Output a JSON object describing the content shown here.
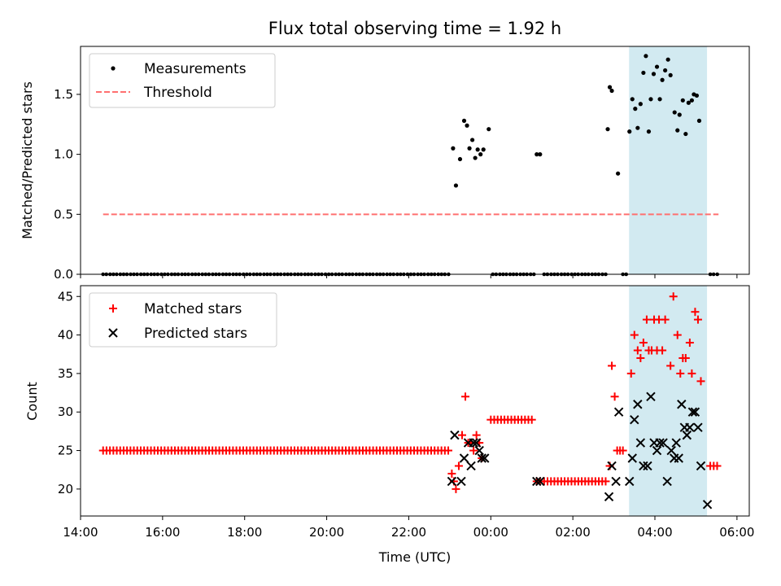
{
  "chart_data": [
    {
      "type": "scatter",
      "title": "Flux total observing time = 1.92 h",
      "xlabel": "",
      "ylabel": "Matched/Predicted stars",
      "xlim": [
        14.0,
        30.3
      ],
      "ylim": [
        0.0,
        1.9
      ],
      "yticks": [
        0.0,
        0.5,
        1.0,
        1.5
      ],
      "ytick_labels": [
        "0.0",
        "0.5",
        "1.0",
        "1.5"
      ],
      "shaded_region": {
        "x_start": 27.37,
        "x_end": 29.27,
        "color": "#add8e6"
      },
      "legend": {
        "placement": "top-left",
        "entries": [
          "Measurements",
          "Threshold"
        ]
      },
      "series": [
        {
          "name": "Measurements",
          "kind": "points",
          "color": "#000000",
          "zero_x": [
            14.55,
            14.63,
            14.72,
            14.8,
            14.88,
            14.97,
            15.05,
            15.13,
            15.22,
            15.3,
            15.38,
            15.47,
            15.55,
            15.63,
            15.72,
            15.8,
            15.88,
            15.97,
            16.05,
            16.13,
            16.22,
            16.3,
            16.38,
            16.47,
            16.55,
            16.63,
            16.72,
            16.8,
            16.88,
            16.97,
            17.05,
            17.13,
            17.22,
            17.3,
            17.38,
            17.47,
            17.55,
            17.63,
            17.72,
            17.8,
            17.88,
            17.97,
            18.05,
            18.13,
            18.22,
            18.3,
            18.38,
            18.47,
            18.55,
            18.63,
            18.72,
            18.8,
            18.88,
            18.97,
            19.05,
            19.13,
            19.22,
            19.3,
            19.38,
            19.47,
            19.55,
            19.63,
            19.72,
            19.8,
            19.88,
            19.97,
            20.05,
            20.13,
            20.22,
            20.3,
            20.38,
            20.47,
            20.55,
            20.63,
            20.72,
            20.8,
            20.88,
            20.97,
            21.05,
            21.13,
            21.22,
            21.3,
            21.38,
            21.47,
            21.55,
            21.63,
            21.72,
            21.8,
            21.88,
            21.97,
            22.05,
            22.13,
            22.22,
            22.3,
            22.38,
            22.47,
            22.55,
            22.63,
            22.72,
            22.8,
            22.88,
            22.97,
            24.05,
            24.13,
            24.22,
            24.3,
            24.38,
            24.47,
            24.55,
            24.63,
            24.72,
            24.8,
            24.88,
            24.97,
            25.05,
            25.3,
            25.38,
            25.47,
            25.55,
            25.63,
            25.72,
            25.8,
            25.88,
            25.97,
            26.05,
            26.13,
            26.22,
            26.3,
            26.38,
            26.47,
            26.55,
            26.63,
            26.72,
            26.8,
            27.22,
            27.3,
            29.35,
            29.43,
            29.52
          ],
          "points": [
            [
              23.08,
              1.05
            ],
            [
              23.15,
              0.74
            ],
            [
              23.25,
              0.96
            ],
            [
              23.35,
              1.28
            ],
            [
              23.42,
              1.24
            ],
            [
              23.48,
              1.05
            ],
            [
              23.55,
              1.12
            ],
            [
              23.62,
              0.97
            ],
            [
              23.68,
              1.04
            ],
            [
              23.75,
              1.0
            ],
            [
              23.82,
              1.04
            ],
            [
              23.95,
              1.21
            ],
            [
              25.12,
              1.0
            ],
            [
              25.2,
              1.0
            ],
            [
              26.85,
              1.21
            ],
            [
              26.9,
              1.56
            ],
            [
              26.95,
              1.53
            ],
            [
              27.1,
              0.84
            ],
            [
              27.38,
              1.19
            ],
            [
              27.45,
              1.46
            ],
            [
              27.52,
              1.38
            ],
            [
              27.58,
              1.22
            ],
            [
              27.65,
              1.42
            ],
            [
              27.72,
              1.68
            ],
            [
              27.78,
              1.82
            ],
            [
              27.85,
              1.19
            ],
            [
              27.9,
              1.46
            ],
            [
              27.97,
              1.67
            ],
            [
              28.05,
              1.73
            ],
            [
              28.12,
              1.46
            ],
            [
              28.18,
              1.62
            ],
            [
              28.25,
              1.7
            ],
            [
              28.32,
              1.79
            ],
            [
              28.38,
              1.66
            ],
            [
              28.48,
              1.35
            ],
            [
              28.55,
              1.2
            ],
            [
              28.6,
              1.33
            ],
            [
              28.68,
              1.45
            ],
            [
              28.75,
              1.17
            ],
            [
              28.82,
              1.43
            ],
            [
              28.9,
              1.45
            ],
            [
              28.95,
              1.5
            ],
            [
              29.02,
              1.49
            ],
            [
              29.08,
              1.28
            ]
          ]
        },
        {
          "name": "Threshold",
          "kind": "dashed-line",
          "color": "#ff7070",
          "x": [
            14.55,
            29.55
          ],
          "y": [
            0.5,
            0.5
          ]
        }
      ]
    },
    {
      "type": "scatter",
      "xlabel": "Time (UTC)",
      "ylabel": "Count",
      "xlim": [
        14.0,
        30.3
      ],
      "ylim": [
        16.5,
        46.4
      ],
      "yticks": [
        20,
        25,
        30,
        35,
        40,
        45
      ],
      "ytick_labels": [
        "20",
        "25",
        "30",
        "35",
        "40",
        "45"
      ],
      "xticks": [
        14,
        16,
        18,
        20,
        22,
        24,
        26,
        28,
        30
      ],
      "xtick_labels": [
        "14:00",
        "16:00",
        "18:00",
        "20:00",
        "22:00",
        "00:00",
        "02:00",
        "04:00",
        "06:00"
      ],
      "shaded_region": {
        "x_start": 27.37,
        "x_end": 29.27,
        "color": "#add8e6"
      },
      "legend": {
        "placement": "top-left",
        "entries": [
          "Matched stars",
          "Predicted stars"
        ]
      },
      "series": [
        {
          "name": "Matched stars",
          "marker": "plus",
          "color": "#ff0000",
          "flat_runs": [
            {
              "x_start": 14.55,
              "x_end": 22.97,
              "step": 0.0833,
              "y": 25
            },
            {
              "x_start": 24.0,
              "x_end": 25.05,
              "step": 0.0833,
              "y": 29
            },
            {
              "x_start": 25.3,
              "x_end": 26.8,
              "step": 0.0833,
              "y": 21
            },
            {
              "x_start": 27.22,
              "x_end": 27.3,
              "step": 0.0833,
              "y": 25
            },
            {
              "x_start": 29.35,
              "x_end": 29.52,
              "step": 0.0833,
              "y": 23
            }
          ],
          "points": [
            [
              23.05,
              22
            ],
            [
              23.1,
              21
            ],
            [
              23.15,
              20
            ],
            [
              23.22,
              23
            ],
            [
              23.3,
              27
            ],
            [
              23.38,
              32
            ],
            [
              23.45,
              26
            ],
            [
              23.52,
              26
            ],
            [
              23.58,
              25
            ],
            [
              23.65,
              27
            ],
            [
              23.72,
              26
            ],
            [
              23.78,
              24
            ],
            [
              25.12,
              21
            ],
            [
              25.2,
              21
            ],
            [
              26.9,
              23
            ],
            [
              26.95,
              36
            ],
            [
              27.02,
              32
            ],
            [
              27.08,
              25
            ],
            [
              27.15,
              25
            ],
            [
              27.42,
              35
            ],
            [
              27.5,
              40
            ],
            [
              27.58,
              38
            ],
            [
              27.65,
              37
            ],
            [
              27.72,
              39
            ],
            [
              27.8,
              42
            ],
            [
              27.85,
              38
            ],
            [
              27.92,
              38
            ],
            [
              27.98,
              42
            ],
            [
              28.05,
              38
            ],
            [
              28.1,
              42
            ],
            [
              28.18,
              38
            ],
            [
              28.25,
              42
            ],
            [
              28.38,
              36
            ],
            [
              28.45,
              45
            ],
            [
              28.55,
              40
            ],
            [
              28.62,
              35
            ],
            [
              28.68,
              37
            ],
            [
              28.75,
              37
            ],
            [
              28.85,
              39
            ],
            [
              28.9,
              35
            ],
            [
              28.98,
              43
            ],
            [
              29.05,
              42
            ],
            [
              29.12,
              34
            ]
          ]
        },
        {
          "name": "Predicted stars",
          "marker": "x",
          "color": "#000000",
          "points": [
            [
              23.05,
              21
            ],
            [
              23.12,
              27
            ],
            [
              23.28,
              21
            ],
            [
              23.35,
              24
            ],
            [
              23.45,
              26
            ],
            [
              23.52,
              23
            ],
            [
              23.58,
              26
            ],
            [
              23.65,
              26
            ],
            [
              23.72,
              25
            ],
            [
              23.78,
              24
            ],
            [
              23.85,
              24
            ],
            [
              25.12,
              21
            ],
            [
              25.2,
              21
            ],
            [
              26.88,
              19
            ],
            [
              26.95,
              23
            ],
            [
              27.05,
              21
            ],
            [
              27.12,
              30
            ],
            [
              27.38,
              21
            ],
            [
              27.45,
              24
            ],
            [
              27.5,
              29
            ],
            [
              27.58,
              31
            ],
            [
              27.65,
              26
            ],
            [
              27.72,
              23
            ],
            [
              27.82,
              23
            ],
            [
              27.9,
              32
            ],
            [
              27.98,
              26
            ],
            [
              28.05,
              25
            ],
            [
              28.12,
              26
            ],
            [
              28.2,
              26
            ],
            [
              28.3,
              21
            ],
            [
              28.4,
              25
            ],
            [
              28.47,
              24
            ],
            [
              28.52,
              26
            ],
            [
              28.58,
              24
            ],
            [
              28.65,
              31
            ],
            [
              28.72,
              28
            ],
            [
              28.78,
              27
            ],
            [
              28.85,
              28
            ],
            [
              28.92,
              30
            ],
            [
              28.98,
              30
            ],
            [
              29.05,
              28
            ],
            [
              29.12,
              23
            ],
            [
              29.28,
              18
            ]
          ]
        }
      ]
    }
  ]
}
